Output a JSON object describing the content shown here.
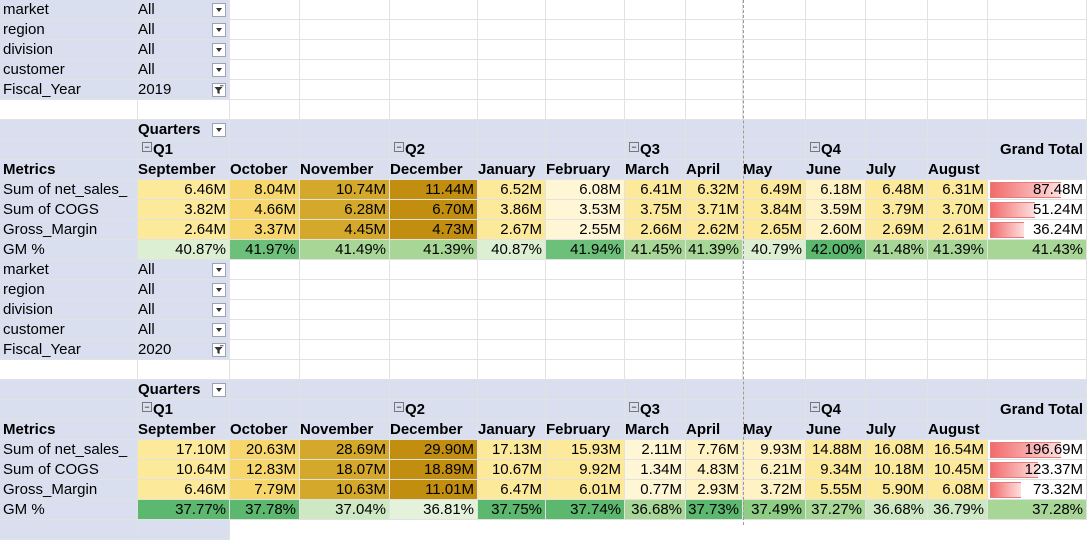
{
  "filters": [
    {
      "rows": [
        {
          "label": "market",
          "value": "All",
          "filtered": false
        },
        {
          "label": "region",
          "value": "All",
          "filtered": false
        },
        {
          "label": "division",
          "value": "All",
          "filtered": false
        },
        {
          "label": "customer",
          "value": "All",
          "filtered": false
        },
        {
          "label": "Fiscal_Year",
          "value": "2019",
          "filtered": true
        }
      ]
    },
    {
      "rows": [
        {
          "label": "market",
          "value": "All",
          "filtered": false
        },
        {
          "label": "region",
          "value": "All",
          "filtered": false
        },
        {
          "label": "division",
          "value": "All",
          "filtered": false
        },
        {
          "label": "customer",
          "value": "All",
          "filtered": false
        },
        {
          "label": "Fiscal_Year",
          "value": "2020",
          "filtered": true
        }
      ]
    }
  ],
  "pivots": [
    {
      "quarters_label": "Quarters",
      "quarters": [
        "Q1",
        "Q2",
        "Q3",
        "Q4"
      ],
      "row_header": "Metrics",
      "grand_total_label": "Grand Total",
      "months": [
        "September",
        "October",
        "November",
        "December",
        "January",
        "February",
        "March",
        "April",
        "May",
        "June",
        "July",
        "August"
      ],
      "rows": [
        {
          "label": "Sum of net_sales_",
          "values": [
            "6.46M",
            "8.04M",
            "10.74M",
            "11.44M",
            "6.52M",
            "6.08M",
            "6.41M",
            "6.32M",
            "6.49M",
            "6.18M",
            "6.48M",
            "6.31M"
          ],
          "total": "87.48M",
          "bar": 1.0,
          "colors": [
            "#fde99a",
            "#f7d66c",
            "#d4a82a",
            "#c18e10",
            "#fde99a",
            "#fff6d6",
            "#fde99a",
            "#fde99a",
            "#fde99a",
            "#fff2c4",
            "#fde99a",
            "#fde99a"
          ]
        },
        {
          "label": "Sum of COGS",
          "values": [
            "3.82M",
            "4.66M",
            "6.28M",
            "6.70M",
            "3.86M",
            "3.53M",
            "3.75M",
            "3.71M",
            "3.84M",
            "3.59M",
            "3.79M",
            "3.70M"
          ],
          "total": "51.24M",
          "bar": 0.59,
          "colors": [
            "#fde99a",
            "#f7d66c",
            "#d4a82a",
            "#c18e10",
            "#fde99a",
            "#fff6d6",
            "#fde99a",
            "#fde99a",
            "#fde99a",
            "#fff2c4",
            "#fde99a",
            "#fde99a"
          ]
        },
        {
          "label": "Gross_Margin",
          "values": [
            "2.64M",
            "3.37M",
            "4.45M",
            "4.73M",
            "2.67M",
            "2.55M",
            "2.66M",
            "2.62M",
            "2.65M",
            "2.60M",
            "2.69M",
            "2.61M"
          ],
          "total": "36.24M",
          "bar": 0.41,
          "colors": [
            "#fde99a",
            "#f7d66c",
            "#d4a82a",
            "#c18e10",
            "#fde99a",
            "#fff6d6",
            "#fde99a",
            "#fde99a",
            "#fde99a",
            "#fff2c4",
            "#fde99a",
            "#fde99a"
          ]
        },
        {
          "label": "GM %",
          "values": [
            "40.87%",
            "41.97%",
            "41.49%",
            "41.39%",
            "40.87%",
            "41.94%",
            "41.45%",
            "41.39%",
            "40.79%",
            "42.00%",
            "41.48%",
            "41.39%"
          ],
          "total": "41.43%",
          "bar": null,
          "colors": [
            "#dcefd3",
            "#6cc07a",
            "#a7d697",
            "#a7d697",
            "#dcefd3",
            "#6cc07a",
            "#a7d697",
            "#a7d697",
            "#dcefd3",
            "#5cb86f",
            "#a7d697",
            "#a7d697"
          ]
        }
      ]
    },
    {
      "quarters_label": "Quarters",
      "quarters": [
        "Q1",
        "Q2",
        "Q3",
        "Q4"
      ],
      "row_header": "Metrics",
      "grand_total_label": "Grand Total",
      "months": [
        "September",
        "October",
        "November",
        "December",
        "January",
        "February",
        "March",
        "April",
        "May",
        "June",
        "July",
        "August"
      ],
      "rows": [
        {
          "label": "Sum of net_sales_",
          "values": [
            "17.10M",
            "20.63M",
            "28.69M",
            "29.90M",
            "17.13M",
            "15.93M",
            "2.11M",
            "7.76M",
            "9.93M",
            "14.88M",
            "16.08M",
            "16.54M"
          ],
          "total": "196.69M",
          "bar": 1.0,
          "colors": [
            "#fde99a",
            "#f7d66c",
            "#d4a82a",
            "#c18e10",
            "#fde99a",
            "#fde99a",
            "#fff6d6",
            "#fff2c4",
            "#fff2c4",
            "#fde99a",
            "#fde99a",
            "#fde99a"
          ]
        },
        {
          "label": "Sum of COGS",
          "values": [
            "10.64M",
            "12.83M",
            "18.07M",
            "18.89M",
            "10.67M",
            "9.92M",
            "1.34M",
            "4.83M",
            "6.21M",
            "9.34M",
            "10.18M",
            "10.45M"
          ],
          "total": "123.37M",
          "bar": 0.63,
          "colors": [
            "#fde99a",
            "#f7d66c",
            "#d4a82a",
            "#c18e10",
            "#fde99a",
            "#fde99a",
            "#fff6d6",
            "#fff2c4",
            "#fff2c4",
            "#fde99a",
            "#fde99a",
            "#fde99a"
          ]
        },
        {
          "label": "Gross_Margin",
          "values": [
            "6.46M",
            "7.79M",
            "10.63M",
            "11.01M",
            "6.47M",
            "6.01M",
            "0.77M",
            "2.93M",
            "3.72M",
            "5.55M",
            "5.90M",
            "6.08M"
          ],
          "total": "73.32M",
          "bar": 0.37,
          "colors": [
            "#fde99a",
            "#f7d66c",
            "#d4a82a",
            "#c18e10",
            "#fde99a",
            "#fde99a",
            "#fff6d6",
            "#fff2c4",
            "#fff2c4",
            "#fde99a",
            "#fde99a",
            "#fde99a"
          ]
        },
        {
          "label": "GM %",
          "values": [
            "37.77%",
            "37.78%",
            "37.04%",
            "36.81%",
            "37.75%",
            "37.74%",
            "36.68%",
            "37.73%",
            "37.49%",
            "37.27%",
            "36.68%",
            "36.79%"
          ],
          "total": "37.28%",
          "bar": null,
          "colors": [
            "#5cb86f",
            "#5cb86f",
            "#cfe8c4",
            "#e4f2dc",
            "#5cb86f",
            "#5cb86f",
            "#a7d697",
            "#5cb86f",
            "#8fcd84",
            "#a7d697",
            "#cfe8c4",
            "#cfe8c4"
          ]
        }
      ]
    }
  ]
}
